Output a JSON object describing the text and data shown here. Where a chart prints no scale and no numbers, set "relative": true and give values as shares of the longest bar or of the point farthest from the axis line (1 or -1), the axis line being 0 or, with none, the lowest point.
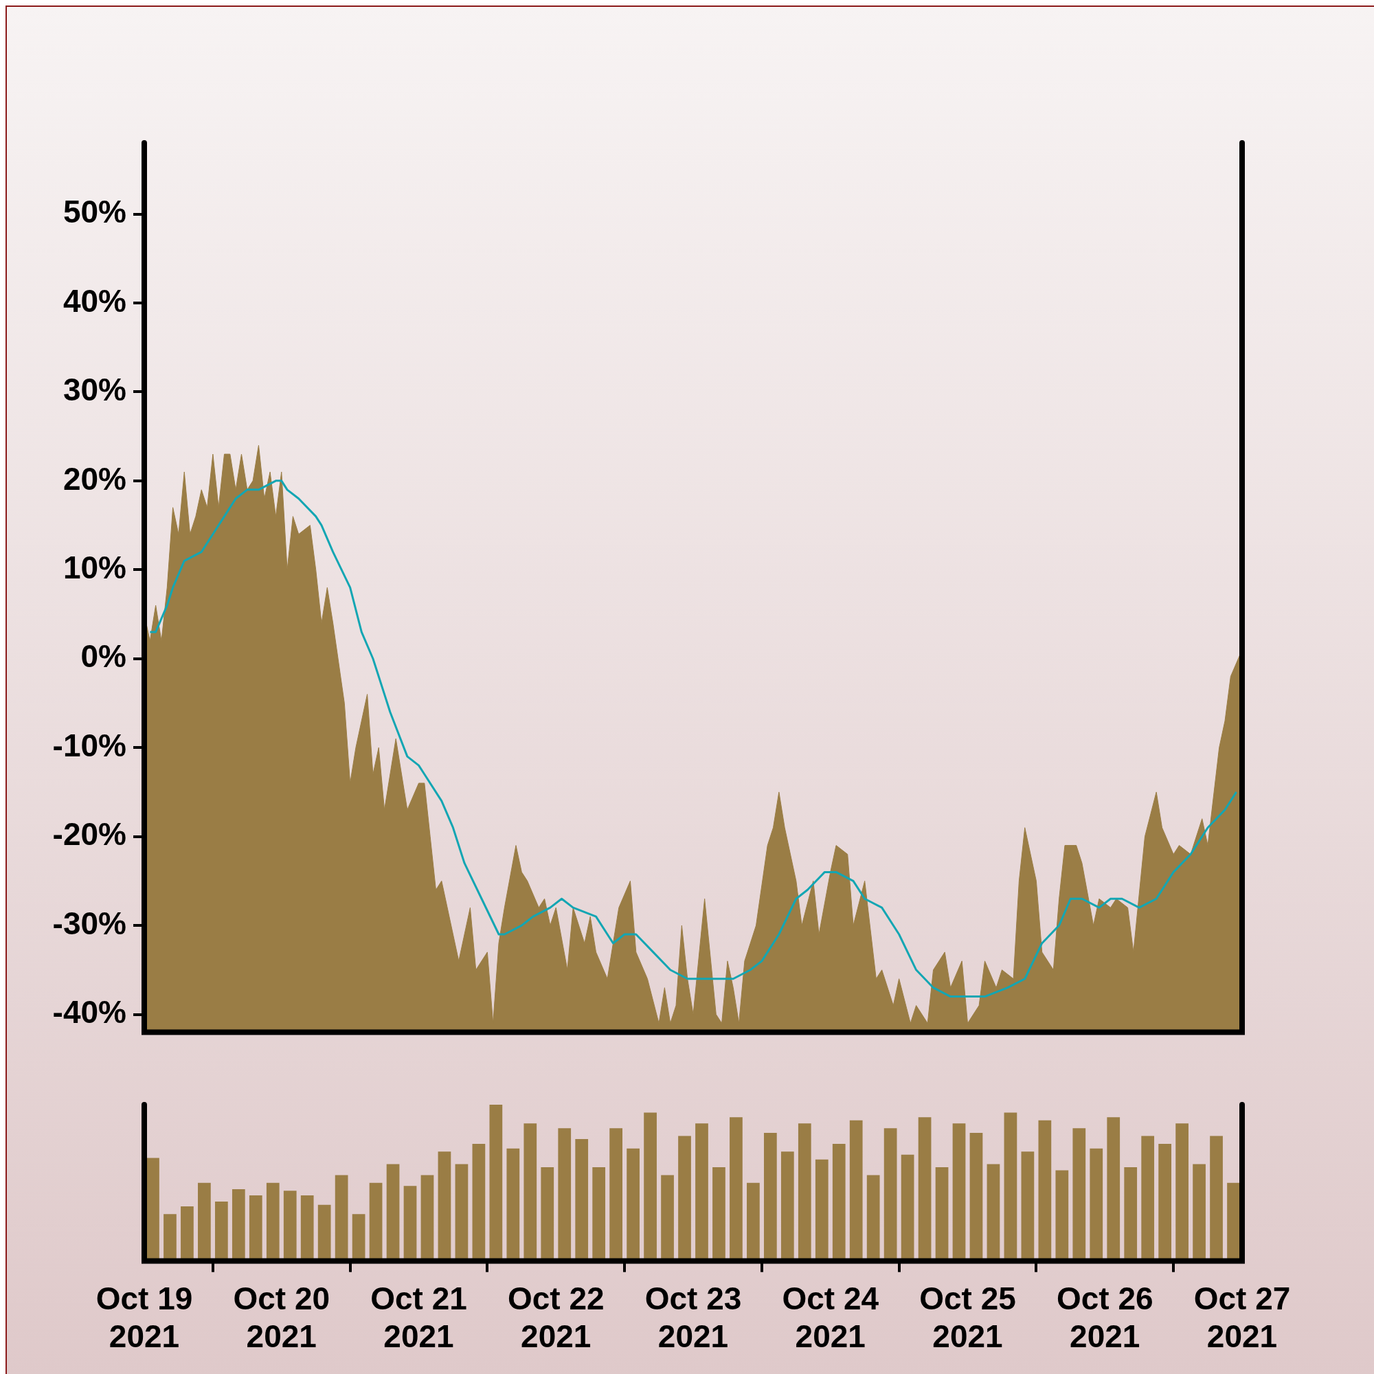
{
  "chart_data": [
    {
      "type": "area",
      "tick_labels": "y",
      "grid": false,
      "legend": false,
      "marker": "none",
      "xlim": [
        "2021-10-19",
        "2021-10-27"
      ],
      "ylim": [
        -42,
        58
      ],
      "yticks": [
        {
          "value": -40,
          "label": "-40%"
        },
        {
          "value": -30,
          "label": "-30%"
        },
        {
          "value": -20,
          "label": "-20%"
        },
        {
          "value": -10,
          "label": "-10%"
        },
        {
          "value": 0,
          "label": "0%"
        },
        {
          "value": 10,
          "label": "10%"
        },
        {
          "value": 20,
          "label": "20%"
        },
        {
          "value": 30,
          "label": "30%"
        },
        {
          "value": 40,
          "label": "40%"
        },
        {
          "value": 50,
          "label": "50%"
        }
      ],
      "series": [
        {
          "type": "area",
          "color": "#9a7d45",
          "x": [
            "2021-10-19T00:00",
            "2021-10-19T01:00",
            "2021-10-19T02:00",
            "2021-10-19T03:00",
            "2021-10-19T04:00",
            "2021-10-19T05:00",
            "2021-10-19T06:00",
            "2021-10-19T07:00",
            "2021-10-19T08:00",
            "2021-10-19T09:00",
            "2021-10-19T10:00",
            "2021-10-19T11:00",
            "2021-10-19T12:00",
            "2021-10-19T13:00",
            "2021-10-19T14:00",
            "2021-10-19T15:00",
            "2021-10-19T16:00",
            "2021-10-19T17:00",
            "2021-10-19T18:00",
            "2021-10-19T19:00",
            "2021-10-19T20:00",
            "2021-10-19T21:00",
            "2021-10-19T22:00",
            "2021-10-19T23:00",
            "2021-10-20T00:00",
            "2021-10-20T01:00",
            "2021-10-20T02:00",
            "2021-10-20T03:00",
            "2021-10-20T05:00",
            "2021-10-20T06:00",
            "2021-10-20T07:00",
            "2021-10-20T08:00",
            "2021-10-20T09:00",
            "2021-10-20T11:00",
            "2021-10-20T12:00",
            "2021-10-20T13:00",
            "2021-10-20T15:00",
            "2021-10-20T16:00",
            "2021-10-20T17:00",
            "2021-10-20T18:00",
            "2021-10-20T20:00",
            "2021-10-20T21:00",
            "2021-10-20T22:00",
            "2021-10-21T00:00",
            "2021-10-21T01:00",
            "2021-10-21T02:00",
            "2021-10-21T03:00",
            "2021-10-21T04:00",
            "2021-10-21T06:00",
            "2021-10-21T07:00",
            "2021-10-21T09:00",
            "2021-10-21T10:00",
            "2021-10-21T12:00",
            "2021-10-21T13:00",
            "2021-10-21T14:00",
            "2021-10-21T15:00",
            "2021-10-21T17:00",
            "2021-10-21T18:00",
            "2021-10-21T19:00",
            "2021-10-21T21:00",
            "2021-10-21T22:00",
            "2021-10-21T23:00",
            "2021-10-22T00:00",
            "2021-10-22T02:00",
            "2021-10-22T03:00",
            "2021-10-22T05:00",
            "2021-10-22T06:00",
            "2021-10-22T07:00",
            "2021-10-22T09:00",
            "2021-10-22T10:00",
            "2021-10-22T11:00",
            "2021-10-22T13:00",
            "2021-10-22T14:00",
            "2021-10-22T16:00",
            "2021-10-22T18:00",
            "2021-10-22T19:00",
            "2021-10-22T20:00",
            "2021-10-22T21:00",
            "2021-10-22T22:00",
            "2021-10-22T23:00",
            "2021-10-23T00:00",
            "2021-10-23T02:00",
            "2021-10-23T04:00",
            "2021-10-23T05:00",
            "2021-10-23T06:00",
            "2021-10-23T07:00",
            "2021-10-23T08:00",
            "2021-10-23T09:00",
            "2021-10-23T11:00",
            "2021-10-23T13:00",
            "2021-10-23T14:00",
            "2021-10-23T15:00",
            "2021-10-23T16:00",
            "2021-10-23T18:00",
            "2021-10-23T19:00",
            "2021-10-23T21:00",
            "2021-10-23T22:00",
            "2021-10-24T00:00",
            "2021-10-24T01:00",
            "2021-10-24T03:00",
            "2021-10-24T04:00",
            "2021-10-24T06:00",
            "2021-10-24T08:00",
            "2021-10-24T09:00",
            "2021-10-24T11:00",
            "2021-10-24T12:00",
            "2021-10-24T14:00",
            "2021-10-24T15:00",
            "2021-10-24T17:00",
            "2021-10-24T18:00",
            "2021-10-24T20:00",
            "2021-10-24T21:00",
            "2021-10-24T23:00",
            "2021-10-25T00:00",
            "2021-10-25T02:00",
            "2021-10-25T03:00",
            "2021-10-25T05:00",
            "2021-10-25T06:00",
            "2021-10-25T08:00",
            "2021-10-25T09:00",
            "2021-10-25T10:00",
            "2021-10-25T12:00",
            "2021-10-25T13:00",
            "2021-10-25T15:00",
            "2021-10-25T16:00",
            "2021-10-25T17:00",
            "2021-10-25T19:00",
            "2021-10-25T20:00",
            "2021-10-25T22:00",
            "2021-10-25T23:00",
            "2021-10-26T01:00",
            "2021-10-26T02:00",
            "2021-10-26T04:00",
            "2021-10-26T05:00",
            "2021-10-26T07:00",
            "2021-10-26T09:00",
            "2021-10-26T10:00",
            "2021-10-26T12:00",
            "2021-10-26T13:00",
            "2021-10-26T15:00",
            "2021-10-26T17:00",
            "2021-10-26T18:00",
            "2021-10-26T20:00",
            "2021-10-26T21:00",
            "2021-10-26T22:00",
            "2021-10-27T00:00"
          ],
          "values": [
            5,
            2,
            6,
            2,
            8,
            17,
            14,
            21,
            14,
            16,
            19,
            17,
            23,
            17,
            23,
            23,
            19,
            23,
            19,
            20,
            24,
            18,
            21,
            16,
            21,
            10,
            16,
            14,
            15,
            10,
            4,
            8,
            4,
            -5,
            -14,
            -10,
            -4,
            -13,
            -10,
            -17,
            -9,
            -13,
            -17,
            -14,
            -14,
            -20,
            -26,
            -25,
            -31,
            -34,
            -28,
            -35,
            -33,
            -41,
            -32,
            -28,
            -21,
            -24,
            -25,
            -28,
            -27,
            -30,
            -28,
            -35,
            -28,
            -32,
            -29,
            -33,
            -36,
            -32,
            -28,
            -25,
            -33,
            -36,
            -41,
            -37,
            -41,
            -39,
            -30,
            -36,
            -40,
            -27,
            -40,
            -41,
            -34,
            -37,
            -41,
            -34,
            -30,
            -21,
            -19,
            -15,
            -19,
            -25,
            -30,
            -25,
            -31,
            -24,
            -21,
            -22,
            -30,
            -25,
            -36,
            -35,
            -39,
            -36,
            -41,
            -39,
            -41,
            -35,
            -33,
            -37,
            -34,
            -41,
            -39,
            -34,
            -37,
            -35,
            -36,
            -25,
            -19,
            -25,
            -33,
            -35,
            -27,
            -21,
            -21,
            -23,
            -30,
            -27,
            -28,
            -27,
            -28,
            -33,
            -20,
            -15,
            -19,
            -22,
            -21,
            -22,
            -18,
            -21,
            -10,
            -7,
            -2,
            1
          ]
        },
        {
          "type": "line",
          "color": "#13a6b3",
          "x": [
            "2021-10-19T01:00",
            "2021-10-19T02:00",
            "2021-10-19T04:00",
            "2021-10-19T05:00",
            "2021-10-19T07:00",
            "2021-10-19T10:00",
            "2021-10-19T12:00",
            "2021-10-19T14:00",
            "2021-10-19T16:00",
            "2021-10-19T18:00",
            "2021-10-19T20:00",
            "2021-10-19T23:00",
            "2021-10-20T00:00",
            "2021-10-20T01:00",
            "2021-10-20T03:00",
            "2021-10-20T06:00",
            "2021-10-20T07:00",
            "2021-10-20T09:00",
            "2021-10-20T12:00",
            "2021-10-20T14:00",
            "2021-10-20T16:00",
            "2021-10-20T19:00",
            "2021-10-20T22:00",
            "2021-10-21T00:00",
            "2021-10-21T01:00",
            "2021-10-21T04:00",
            "2021-10-21T06:00",
            "2021-10-21T08:00",
            "2021-10-21T11:00",
            "2021-10-21T14:00",
            "2021-10-21T15:00",
            "2021-10-21T18:00",
            "2021-10-21T20:00",
            "2021-10-21T23:00",
            "2021-10-22T01:00",
            "2021-10-22T03:00",
            "2021-10-22T07:00",
            "2021-10-22T10:00",
            "2021-10-22T12:00",
            "2021-10-22T14:00",
            "2021-10-22T17:00",
            "2021-10-22T20:00",
            "2021-10-22T23:00",
            "2021-10-23T02:00",
            "2021-10-23T04:00",
            "2021-10-23T07:00",
            "2021-10-23T10:00",
            "2021-10-23T12:00",
            "2021-10-23T15:00",
            "2021-10-23T18:00",
            "2021-10-23T20:00",
            "2021-10-23T23:00",
            "2021-10-24T01:00",
            "2021-10-24T04:00",
            "2021-10-24T06:00",
            "2021-10-24T09:00",
            "2021-10-24T12:00",
            "2021-10-24T15:00",
            "2021-10-24T18:00",
            "2021-10-24T21:00",
            "2021-10-25T00:00",
            "2021-10-25T03:00",
            "2021-10-25T07:00",
            "2021-10-25T10:00",
            "2021-10-25T13:00",
            "2021-10-25T16:00",
            "2021-10-25T18:00",
            "2021-10-25T20:00",
            "2021-10-25T23:00",
            "2021-10-26T01:00",
            "2021-10-26T03:00",
            "2021-10-26T06:00",
            "2021-10-26T09:00",
            "2021-10-26T12:00",
            "2021-10-26T15:00",
            "2021-10-26T18:00",
            "2021-10-26T21:00",
            "2021-10-26T23:00"
          ],
          "values": [
            3,
            3,
            6,
            8,
            11,
            12,
            14,
            16,
            18,
            19,
            19,
            20,
            20,
            19,
            18,
            16,
            15,
            12,
            8,
            3,
            0,
            -6,
            -11,
            -12,
            -13,
            -16,
            -19,
            -23,
            -27,
            -31,
            -31,
            -30,
            -29,
            -28,
            -27,
            -28,
            -29,
            -32,
            -31,
            -31,
            -33,
            -35,
            -36,
            -36,
            -36,
            -36,
            -35,
            -34,
            -31,
            -27,
            -26,
            -24,
            -24,
            -25,
            -27,
            -28,
            -31,
            -35,
            -37,
            -38,
            -38,
            -38,
            -37,
            -36,
            -32,
            -30,
            -27,
            -27,
            -28,
            -27,
            -27,
            -28,
            -27,
            -24,
            -22,
            -19,
            -17,
            -15
          ]
        }
      ]
    },
    {
      "type": "bar",
      "relative": true,
      "grid": false,
      "legend": false,
      "color": "#9a7d45",
      "xlim": [
        "2021-10-19",
        "2021-10-27"
      ],
      "xticks": [
        {
          "value": "2021-10-19",
          "label": "Oct 19 2021"
        },
        {
          "value": "2021-10-20",
          "label": "Oct 20 2021"
        },
        {
          "value": "2021-10-21",
          "label": "Oct 21 2021"
        },
        {
          "value": "2021-10-22",
          "label": "Oct 22 2021"
        },
        {
          "value": "2021-10-23",
          "label": "Oct 23 2021"
        },
        {
          "value": "2021-10-24",
          "label": "Oct 24 2021"
        },
        {
          "value": "2021-10-25",
          "label": "Oct 25 2021"
        },
        {
          "value": "2021-10-26",
          "label": "Oct 26 2021"
        },
        {
          "value": "2021-10-27",
          "label": "Oct 27 2021"
        }
      ],
      "x": [
        "2021-10-19T01:30",
        "2021-10-19T04:30",
        "2021-10-19T07:30",
        "2021-10-19T10:30",
        "2021-10-19T13:30",
        "2021-10-19T16:30",
        "2021-10-19T19:30",
        "2021-10-19T22:30",
        "2021-10-20T01:30",
        "2021-10-20T04:30",
        "2021-10-20T07:30",
        "2021-10-20T10:30",
        "2021-10-20T13:30",
        "2021-10-20T16:30",
        "2021-10-20T19:30",
        "2021-10-20T22:30",
        "2021-10-21T01:30",
        "2021-10-21T04:30",
        "2021-10-21T07:30",
        "2021-10-21T10:30",
        "2021-10-21T13:30",
        "2021-10-21T16:30",
        "2021-10-21T19:30",
        "2021-10-21T22:30",
        "2021-10-22T01:30",
        "2021-10-22T04:30",
        "2021-10-22T07:30",
        "2021-10-22T10:30",
        "2021-10-22T13:30",
        "2021-10-22T16:30",
        "2021-10-22T19:30",
        "2021-10-22T22:30",
        "2021-10-23T01:30",
        "2021-10-23T04:30",
        "2021-10-23T07:30",
        "2021-10-23T10:30",
        "2021-10-23T13:30",
        "2021-10-23T16:30",
        "2021-10-23T19:30",
        "2021-10-23T22:30",
        "2021-10-24T01:30",
        "2021-10-24T04:30",
        "2021-10-24T07:30",
        "2021-10-24T10:30",
        "2021-10-24T13:30",
        "2021-10-24T16:30",
        "2021-10-24T19:30",
        "2021-10-24T22:30",
        "2021-10-25T01:30",
        "2021-10-25T04:30",
        "2021-10-25T07:30",
        "2021-10-25T10:30",
        "2021-10-25T13:30",
        "2021-10-25T16:30",
        "2021-10-25T19:30",
        "2021-10-25T22:30",
        "2021-10-26T01:30",
        "2021-10-26T04:30",
        "2021-10-26T07:30",
        "2021-10-26T10:30",
        "2021-10-26T13:30",
        "2021-10-26T16:30",
        "2021-10-26T19:30",
        "2021-10-26T22:30"
      ],
      "values": [
        0.66,
        0.3,
        0.35,
        0.5,
        0.38,
        0.46,
        0.42,
        0.5,
        0.45,
        0.42,
        0.36,
        0.55,
        0.3,
        0.5,
        0.62,
        0.48,
        0.55,
        0.7,
        0.62,
        0.75,
        1,
        0.72,
        0.88,
        0.6,
        0.85,
        0.78,
        0.6,
        0.85,
        0.72,
        0.95,
        0.55,
        0.8,
        0.88,
        0.6,
        0.92,
        0.5,
        0.82,
        0.7,
        0.88,
        0.65,
        0.75,
        0.9,
        0.55,
        0.85,
        0.68,
        0.92,
        0.6,
        0.88,
        0.82,
        0.62,
        0.95,
        0.7,
        0.9,
        0.58,
        0.85,
        0.72,
        0.92,
        0.6,
        0.8,
        0.75,
        0.88,
        0.62,
        0.8,
        0.5
      ]
    }
  ]
}
